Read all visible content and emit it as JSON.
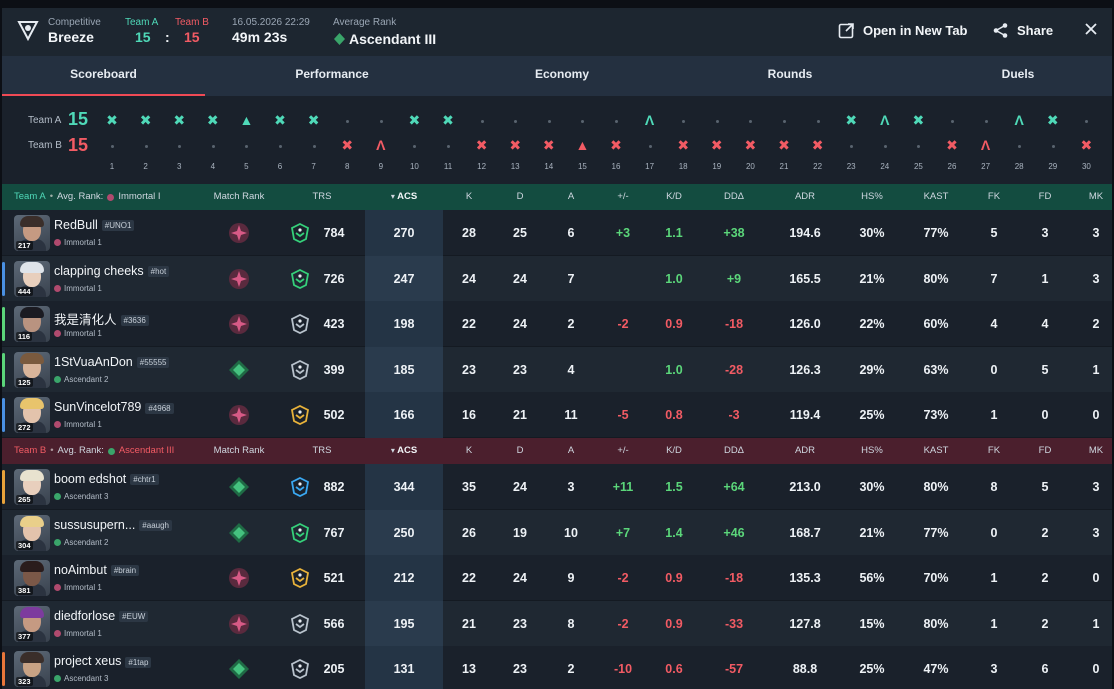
{
  "header": {
    "mode": "Competitive",
    "map": "Breeze",
    "teamA_label": "Team A",
    "teamB_label": "Team B",
    "teamA_score": "15",
    "score_sep": ":",
    "teamB_score": "15",
    "datetime": "16.05.2026 22:29",
    "duration": "49m 23s",
    "avg_rank_label": "Average Rank",
    "avg_rank": "Ascendant III",
    "open_label": "Open in New Tab",
    "share_label": "Share",
    "close_icon": "close-icon"
  },
  "tabs": [
    "Scoreboard",
    "Performance",
    "Economy",
    "Rounds",
    "Duels"
  ],
  "active_tab": "Scoreboard",
  "timeline": {
    "teamA_label": "Team A",
    "teamA_score": "15",
    "teamB_label": "Team B",
    "teamB_score": "15",
    "rounds": [
      {
        "n": "1",
        "winner": "A",
        "type": "elim"
      },
      {
        "n": "2",
        "winner": "A",
        "type": "elim"
      },
      {
        "n": "3",
        "winner": "A",
        "type": "elim"
      },
      {
        "n": "4",
        "winner": "A",
        "type": "elim"
      },
      {
        "n": "5",
        "winner": "A",
        "type": "spike"
      },
      {
        "n": "6",
        "winner": "A",
        "type": "elim"
      },
      {
        "n": "7",
        "winner": "A",
        "type": "elim"
      },
      {
        "n": "8",
        "winner": "B",
        "type": "elim"
      },
      {
        "n": "9",
        "winner": "B",
        "type": "defuse"
      },
      {
        "n": "10",
        "winner": "A",
        "type": "elim"
      },
      {
        "n": "11",
        "winner": "A",
        "type": "elim"
      },
      {
        "n": "12",
        "winner": "B",
        "type": "elim"
      },
      {
        "n": "13",
        "winner": "B",
        "type": "elim"
      },
      {
        "n": "14",
        "winner": "B",
        "type": "elim"
      },
      {
        "n": "15",
        "winner": "B",
        "type": "spike"
      },
      {
        "n": "16",
        "winner": "B",
        "type": "elim"
      },
      {
        "n": "17",
        "winner": "A",
        "type": "defuse"
      },
      {
        "n": "18",
        "winner": "B",
        "type": "elim"
      },
      {
        "n": "19",
        "winner": "B",
        "type": "elim"
      },
      {
        "n": "20",
        "winner": "B",
        "type": "elim"
      },
      {
        "n": "21",
        "winner": "B",
        "type": "elim"
      },
      {
        "n": "22",
        "winner": "B",
        "type": "elim"
      },
      {
        "n": "23",
        "winner": "A",
        "type": "elim"
      },
      {
        "n": "24",
        "winner": "A",
        "type": "defuse"
      },
      {
        "n": "25",
        "winner": "A",
        "type": "elim"
      },
      {
        "n": "26",
        "winner": "B",
        "type": "elim"
      },
      {
        "n": "27",
        "winner": "B",
        "type": "defuse"
      },
      {
        "n": "28",
        "winner": "A",
        "type": "defuse"
      },
      {
        "n": "29",
        "winner": "A",
        "type": "elim"
      },
      {
        "n": "30",
        "winner": "B",
        "type": "elim"
      }
    ]
  },
  "columns": [
    "Match Rank",
    "TRS",
    "ACS",
    "K",
    "D",
    "A",
    "+/-",
    "K/D",
    "DDΔ",
    "ADR",
    "HS%",
    "KAST",
    "FK",
    "FD",
    "MK"
  ],
  "teamA": {
    "label": "Team A",
    "avg_label": "Avg. Rank:",
    "avg_rank": "Immortal I",
    "color": "#4fd9b8",
    "players": [
      {
        "name": "RedBull",
        "tag": "#UNO1",
        "rank": "Immortal 1",
        "level": "217",
        "stripe": "",
        "mrank": "immortal",
        "trs_icon": "green",
        "trs": "784",
        "acs": "270",
        "k": "28",
        "d": "25",
        "a": "6",
        "pm": "+3",
        "kd": "1.1",
        "dd": "+38",
        "adr": "194.6",
        "hs": "30%",
        "kast": "77%",
        "fk": "5",
        "fd": "3",
        "mk": "3",
        "hair": "#3a2e2a",
        "skin": "#c59a82"
      },
      {
        "name": "clapping cheeks",
        "tag": "#hot",
        "rank": "Immortal 1",
        "level": "444",
        "stripe": "#4a90e2",
        "mrank": "immortal",
        "trs_icon": "green",
        "trs": "726",
        "acs": "247",
        "k": "24",
        "d": "24",
        "a": "7",
        "pm": "",
        "kd": "1.0",
        "dd": "+9",
        "adr": "165.5",
        "hs": "21%",
        "kast": "80%",
        "fk": "7",
        "fd": "1",
        "mk": "3",
        "hair": "#dfe4ea",
        "skin": "#e8cfbd"
      },
      {
        "name": "我是清化人",
        "tag": "#3636",
        "rank": "Immortal 1",
        "level": "116",
        "stripe": "#5bd67a",
        "mrank": "immortal",
        "trs_icon": "gray",
        "trs": "423",
        "acs": "198",
        "k": "22",
        "d": "24",
        "a": "2",
        "pm": "-2",
        "kd": "0.9",
        "dd": "-18",
        "adr": "126.0",
        "hs": "22%",
        "kast": "60%",
        "fk": "4",
        "fd": "4",
        "mk": "2",
        "hair": "#1b1b22",
        "skin": "#b99380"
      },
      {
        "name": "1StVuaAnDon",
        "tag": "#55555",
        "rank": "Ascendant 2",
        "level": "125",
        "stripe": "#5bd67a",
        "mrank": "ascendant",
        "trs_icon": "gray",
        "trs": "399",
        "acs": "185",
        "k": "23",
        "d": "23",
        "a": "4",
        "pm": "",
        "kd": "1.0",
        "dd": "-28",
        "adr": "126.3",
        "hs": "29%",
        "kast": "63%",
        "fk": "0",
        "fd": "5",
        "mk": "1",
        "hair": "#7a5a3e",
        "skin": "#d8b49a"
      },
      {
        "name": "SunVincelot789",
        "tag": "#4968",
        "rank": "Immortal 1",
        "level": "272",
        "stripe": "#4a90e2",
        "mrank": "immortal",
        "trs_icon": "gold",
        "trs": "502",
        "acs": "166",
        "k": "16",
        "d": "21",
        "a": "11",
        "pm": "-5",
        "kd": "0.8",
        "dd": "-3",
        "adr": "119.4",
        "hs": "25%",
        "kast": "73%",
        "fk": "1",
        "fd": "0",
        "mk": "0",
        "hair": "#e8c46c",
        "skin": "#e3c3ac"
      }
    ]
  },
  "teamB": {
    "label": "Team B",
    "avg_label": "Avg. Rank:",
    "avg_rank": "Ascendant III",
    "color": "#f25b64",
    "players": [
      {
        "name": "boom edshot",
        "tag": "#chtr1",
        "rank": "Ascendant 3",
        "level": "265",
        "stripe": "#e8a23a",
        "mrank": "ascendant",
        "trs_icon": "blue",
        "trs": "882",
        "acs": "344",
        "k": "35",
        "d": "24",
        "a": "3",
        "pm": "+11",
        "kd": "1.5",
        "dd": "+64",
        "adr": "213.0",
        "hs": "30%",
        "kast": "80%",
        "fk": "8",
        "fd": "5",
        "mk": "3",
        "hair": "#e8e2cf",
        "skin": "#e8cfbd"
      },
      {
        "name": "sussusupern...",
        "tag": "#aaugh",
        "rank": "Ascendant 2",
        "level": "304",
        "stripe": "",
        "mrank": "ascendant",
        "trs_icon": "green",
        "trs": "767",
        "acs": "250",
        "k": "26",
        "d": "19",
        "a": "10",
        "pm": "+7",
        "kd": "1.4",
        "dd": "+46",
        "adr": "168.7",
        "hs": "21%",
        "kast": "77%",
        "fk": "0",
        "fd": "2",
        "mk": "3",
        "hair": "#e9cf8a",
        "skin": "#e3c3ac"
      },
      {
        "name": "noAimbut",
        "tag": "#brain",
        "rank": "Immortal 1",
        "level": "381",
        "stripe": "",
        "mrank": "immortal",
        "trs_icon": "gold",
        "trs": "521",
        "acs": "212",
        "k": "22",
        "d": "24",
        "a": "9",
        "pm": "-2",
        "kd": "0.9",
        "dd": "-18",
        "adr": "135.3",
        "hs": "56%",
        "kast": "70%",
        "fk": "1",
        "fd": "2",
        "mk": "0",
        "hair": "#2a1c1c",
        "skin": "#7b5848"
      },
      {
        "name": "diedforlose",
        "tag": "#EUW",
        "rank": "Immortal 1",
        "level": "377",
        "stripe": "",
        "mrank": "immortal",
        "trs_icon": "gray",
        "trs": "566",
        "acs": "195",
        "k": "21",
        "d": "23",
        "a": "8",
        "pm": "-2",
        "kd": "0.9",
        "dd": "-33",
        "adr": "127.8",
        "hs": "15%",
        "kast": "80%",
        "fk": "1",
        "fd": "2",
        "mk": "1",
        "hair": "#7d3b9e",
        "skin": "#c59a82"
      },
      {
        "name": "project xeus",
        "tag": "#1tap",
        "rank": "Ascendant 3",
        "level": "323",
        "stripe": "#e8763a",
        "mrank": "ascendant",
        "trs_icon": "gray",
        "trs": "205",
        "acs": "131",
        "k": "13",
        "d": "23",
        "a": "2",
        "pm": "-10",
        "kd": "0.6",
        "dd": "-57",
        "adr": "88.8",
        "hs": "25%",
        "kast": "47%",
        "fk": "3",
        "fd": "6",
        "mk": "0",
        "hair": "#3a2e2a",
        "skin": "#c8a284"
      }
    ]
  },
  "colors": {
    "teamA": "#4fd9b8",
    "teamB": "#f25b64",
    "positive": "#5bd67a",
    "negative": "#f25b64",
    "tab_underline": "#f04a55"
  }
}
